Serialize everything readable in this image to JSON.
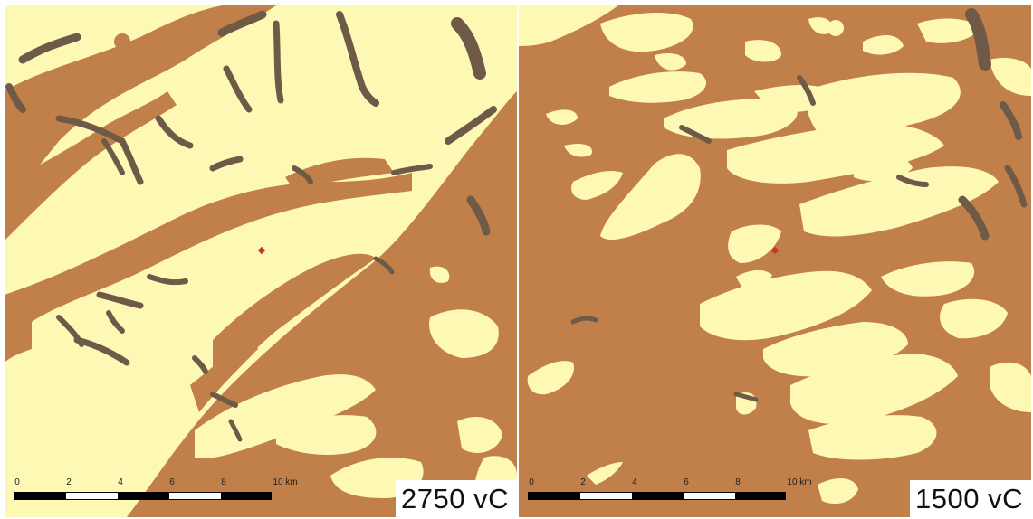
{
  "colors": {
    "land": "#fdf9b4",
    "peat": "#c17f4a",
    "channel": "#6f5a48",
    "marker": "#c0392b",
    "scale_dark": "#000000",
    "scale_light": "#ffffff"
  },
  "panels": [
    {
      "id": "left",
      "date_label": "2750 vC",
      "scale_labels": [
        "0",
        "2",
        "4",
        "6",
        "8",
        "10 km"
      ],
      "peat_coverage": "low"
    },
    {
      "id": "right",
      "date_label": "1500 vC",
      "scale_labels": [
        "0",
        "2",
        "4",
        "6",
        "8",
        "10 km"
      ],
      "peat_coverage": "high"
    }
  ],
  "icons": [
    "site-marker-icon",
    "scale-bar"
  ]
}
